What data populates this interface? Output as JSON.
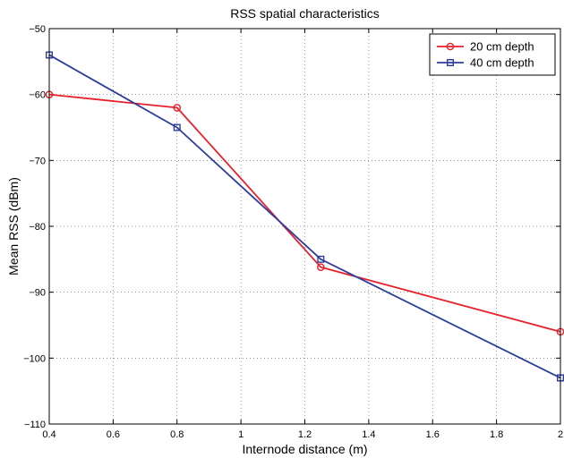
{
  "chart_data": {
    "type": "line",
    "title": "RSS spatial characteristics",
    "xlabel": "Internode distance (m)",
    "ylabel": "Mean RSS (dBm)",
    "xlim": [
      0.4,
      2
    ],
    "ylim": [
      -110,
      -50
    ],
    "xticks": [
      0.4,
      0.6,
      0.8,
      1,
      1.2,
      1.4,
      1.6,
      1.8,
      2
    ],
    "xtick_labels": [
      "0.4",
      "0.6",
      "0.8",
      "1",
      "1.2",
      "1.4",
      "1.6",
      "1.8",
      "2"
    ],
    "yticks": [
      -110,
      -100,
      -90,
      -80,
      -70,
      -60,
      -50
    ],
    "ytick_labels": [
      "−110",
      "−100",
      "−90",
      "−80",
      "−70",
      "−60",
      "−50"
    ],
    "grid": true,
    "legend_position": "top-right",
    "series": [
      {
        "name": "20 cm depth",
        "color": "#e8202a",
        "marker": "circle",
        "x": [
          0.4,
          0.8,
          1.25,
          2
        ],
        "y": [
          -60,
          -62,
          -86.2,
          -96
        ]
      },
      {
        "name": "40 cm depth",
        "color": "#2e3d9c",
        "marker": "square",
        "x": [
          0.4,
          0.8,
          1.25,
          2
        ],
        "y": [
          -54,
          -65,
          -85,
          -103
        ]
      }
    ]
  }
}
